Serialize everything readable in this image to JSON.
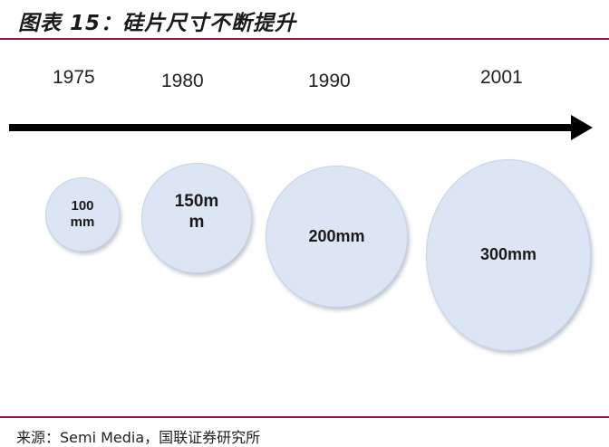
{
  "figure": {
    "title": "图表 15：硅片尺寸不断提升",
    "source": "来源：Semi Media，国联证券研究所"
  },
  "timeline": {
    "years": [
      "1975",
      "1980",
      "1990",
      "2001"
    ]
  },
  "wafers": [
    {
      "label": "100 mm"
    },
    {
      "label": "150mm"
    },
    {
      "label": "200mm"
    },
    {
      "label": "300mm"
    }
  ],
  "colors": {
    "rule": "#8b1a3a",
    "wafer_fill": "#dce5f3",
    "arrow": "#000000"
  }
}
